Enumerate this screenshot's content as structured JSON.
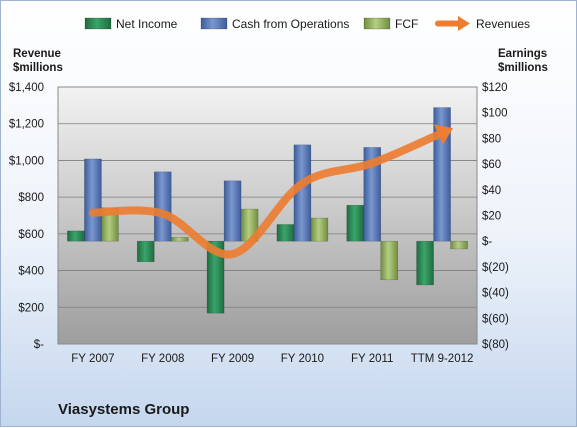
{
  "chart_data": {
    "type": "bar",
    "title": "",
    "company": "Viasystems Group",
    "categories": [
      "FY 2007",
      "FY 2008",
      "FY 2009",
      "FY 2010",
      "FY 2011",
      "TTM 9-2012"
    ],
    "left_axis": {
      "label_line1": "Revenue",
      "label_line2": "$millions",
      "min": 0,
      "max": 1400,
      "ticks": [
        "$-",
        "$200",
        "$400",
        "$600",
        "$800",
        "$1,000",
        "$1,200",
        "$1,400"
      ]
    },
    "right_axis": {
      "label_line1": "Earnings",
      "label_line2": "$millions",
      "min": -80,
      "max": 120,
      "ticks": [
        "$(80)",
        "$(60)",
        "$(40)",
        "$(20)",
        "$-",
        "$20",
        "$40",
        "$60",
        "$80",
        "$100",
        "$120"
      ]
    },
    "series": [
      {
        "name": "Net Income",
        "axis": "right",
        "kind": "bar",
        "color": "#2e8b57",
        "values": [
          8,
          -16,
          -56,
          13,
          28,
          -34
        ]
      },
      {
        "name": "Cash from Operations",
        "axis": "right",
        "kind": "bar",
        "color": "#5876b6",
        "values": [
          64,
          54,
          47,
          75,
          73,
          104
        ]
      },
      {
        "name": "FCF",
        "axis": "right",
        "kind": "bar",
        "color": "#93b25f",
        "values": [
          26,
          3,
          25,
          18,
          -30,
          -6
        ]
      },
      {
        "name": "Revenues",
        "axis": "left",
        "kind": "line",
        "color": "#ec7d31",
        "values": [
          715,
          710,
          490,
          875,
          985,
          1150
        ]
      }
    ],
    "legend_position": "top",
    "grid": true
  }
}
